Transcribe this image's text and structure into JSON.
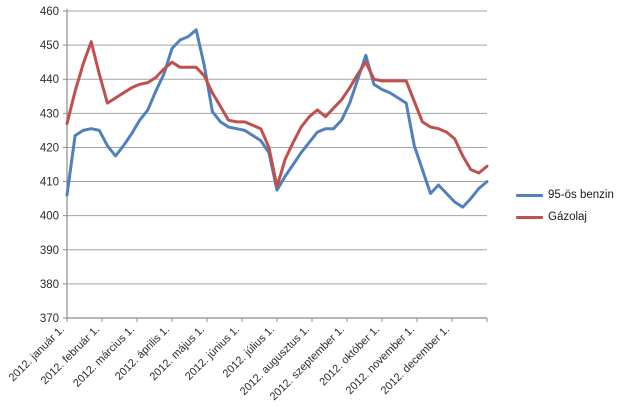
{
  "chart_data": {
    "type": "line",
    "title": "",
    "xlabel": "",
    "ylabel": "",
    "ylim": [
      370,
      460
    ],
    "y_tick_labels": [
      "370",
      "380",
      "390",
      "400",
      "410",
      "420",
      "430",
      "440",
      "450",
      "460"
    ],
    "x_tick_labels": [
      "2012. január 1.",
      "2012. február 1.",
      "2012. március 1.",
      "2012. április 1.",
      "2012. május 1.",
      "2012. június 1.",
      "2012. július 1.",
      "2012. augusztus 1.",
      "2012. szeptember 1.",
      "2012. október 1.",
      "2012. november 1.",
      "2012. december 1."
    ],
    "grid": "horizontal",
    "legend_position": "right",
    "axis_color": "#8c8c8c",
    "gridline_color": "#a3a3a3",
    "text_color": "#2b2b2b",
    "series": [
      {
        "name": "95-ös benzin",
        "color": "#4F81BD",
        "values": [
          406,
          423.5,
          425,
          425.5,
          425,
          420.5,
          417.5,
          420.5,
          424,
          428,
          431,
          436.5,
          441.5,
          449,
          451.5,
          452.5,
          454.5,
          444,
          430.5,
          427.5,
          426,
          425.5,
          425,
          423.5,
          422,
          418.5,
          407.5,
          411.5,
          415,
          418.5,
          421.5,
          424.5,
          425.5,
          425.5,
          428,
          433,
          440,
          447,
          438.5,
          437,
          436,
          434.5,
          433,
          420.5,
          413.5,
          406.5,
          409,
          406.5,
          404,
          402.5,
          405,
          408,
          410
        ]
      },
      {
        "name": "Gázolaj",
        "color": "#C0504D",
        "values": [
          427,
          436.5,
          444.5,
          451,
          441.5,
          433,
          434.5,
          436,
          437.5,
          438.5,
          439,
          440.5,
          443,
          445,
          443.5,
          443.5,
          443.5,
          441,
          436,
          432,
          428,
          427.5,
          427.5,
          426.5,
          425.5,
          420,
          408.5,
          416.5,
          421.5,
          426,
          429,
          431,
          429,
          431.5,
          434,
          437.5,
          441.5,
          445,
          440,
          439.5,
          439.5,
          439.5,
          439.5,
          433.5,
          427.5,
          426,
          425.5,
          424.5,
          422.5,
          417.5,
          413.5,
          412.5,
          414.5
        ]
      }
    ]
  },
  "legend": {
    "items": [
      {
        "label": "95-ös benzin",
        "color": "#4F81BD"
      },
      {
        "label": "Gázolaj",
        "color": "#C0504D"
      }
    ]
  }
}
